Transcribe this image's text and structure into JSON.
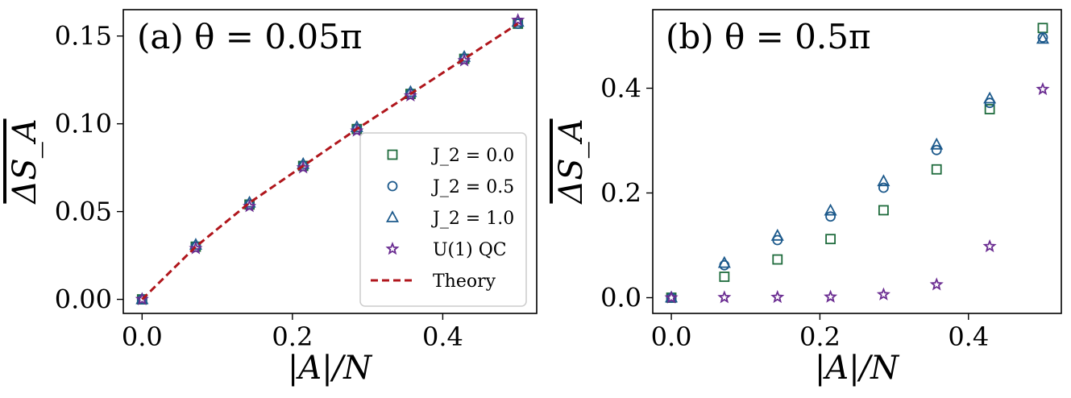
{
  "chart_data": [
    {
      "type": "scatter",
      "title": "(a) θ = 0.05π",
      "xlabel": "|A|/N",
      "ylabel": "ΔS_A",
      "xlim": [
        -0.025,
        0.525
      ],
      "ylim": [
        -0.008,
        0.165
      ],
      "xticks": [
        0.0,
        0.2,
        0.4
      ],
      "yticks": [
        0.0,
        0.05,
        0.1,
        0.15
      ],
      "xtick_labels": [
        "0.0",
        "0.2",
        "0.4"
      ],
      "ytick_labels": [
        "0.00",
        "0.05",
        "0.10",
        "0.15"
      ],
      "legend": {
        "position": "lower-right"
      },
      "x": [
        0.0,
        0.0714,
        0.1429,
        0.2143,
        0.2857,
        0.3571,
        0.4286,
        0.5
      ],
      "series": [
        {
          "name": "J_2 = 0.0",
          "marker": "square",
          "color": "#1e6b3c",
          "values": [
            0.0,
            0.03,
            0.054,
            0.076,
            0.097,
            0.117,
            0.137,
            0.157
          ]
        },
        {
          "name": "J_2 = 0.5",
          "marker": "circle",
          "color": "#1d5a8c",
          "values": [
            0.0,
            0.03,
            0.054,
            0.076,
            0.097,
            0.117,
            0.137,
            0.157
          ]
        },
        {
          "name": "J_2 = 1.0",
          "marker": "triangle",
          "color": "#1d5a8c",
          "values": [
            0.0,
            0.031,
            0.055,
            0.077,
            0.098,
            0.118,
            0.138,
            0.158
          ]
        },
        {
          "name": "U(1) QC",
          "marker": "star",
          "color": "#6a2c91",
          "values": [
            0.0,
            0.029,
            0.053,
            0.075,
            0.096,
            0.116,
            0.136,
            0.159
          ]
        },
        {
          "name": "Theory",
          "marker": "dashed-line",
          "color": "#b0161c",
          "values": [
            0.0,
            0.03,
            0.055,
            0.076,
            0.097,
            0.117,
            0.137,
            0.157
          ]
        }
      ]
    },
    {
      "type": "scatter",
      "title": "(b) θ = 0.5π",
      "xlabel": "|A|/N",
      "ylabel": "ΔS_A",
      "xlim": [
        -0.025,
        0.525
      ],
      "ylim": [
        -0.03,
        0.55
      ],
      "xticks": [
        0.0,
        0.2,
        0.4
      ],
      "yticks": [
        0.0,
        0.2,
        0.4
      ],
      "xtick_labels": [
        "0.0",
        "0.2",
        "0.4"
      ],
      "ytick_labels": [
        "0.0",
        "0.2",
        "0.4"
      ],
      "x": [
        0.0,
        0.0714,
        0.1429,
        0.2143,
        0.2857,
        0.3571,
        0.4286,
        0.5
      ],
      "series": [
        {
          "name": "J_2 = 0.0",
          "marker": "square",
          "color": "#1e6b3c",
          "values": [
            0.0,
            0.04,
            0.073,
            0.112,
            0.167,
            0.245,
            0.36,
            0.515
          ]
        },
        {
          "name": "J_2 = 0.5",
          "marker": "circle",
          "color": "#1d5a8c",
          "values": [
            0.0,
            0.062,
            0.11,
            0.155,
            0.21,
            0.282,
            0.372,
            0.497
          ]
        },
        {
          "name": "J_2 = 1.0",
          "marker": "triangle",
          "color": "#1d5a8c",
          "values": [
            0.0,
            0.066,
            0.118,
            0.166,
            0.222,
            0.292,
            0.38,
            0.494
          ]
        },
        {
          "name": "U(1) QC",
          "marker": "star",
          "color": "#6a2c91",
          "values": [
            0.0,
            0.0005,
            0.001,
            0.0015,
            0.006,
            0.025,
            0.098,
            0.398
          ]
        }
      ]
    }
  ]
}
